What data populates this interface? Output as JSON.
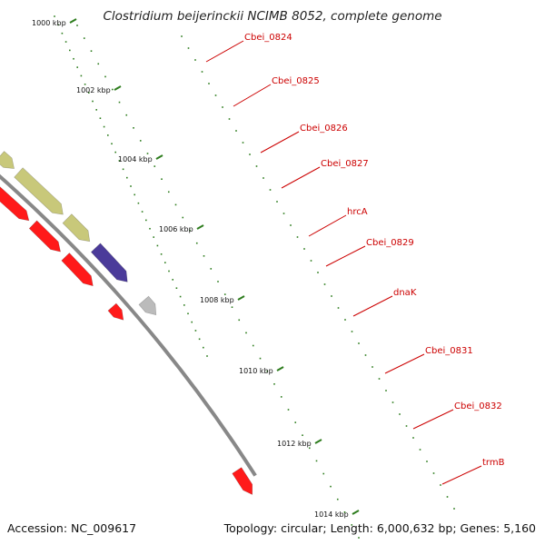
{
  "title": "Clostridium beijerinckii NCIMB 8052, complete genome",
  "footer": {
    "accession": "Accession: NC_009617",
    "topology": "Topology: circular; Length: 6,000,632 bp; Genes: 5,160"
  },
  "colors": {
    "backbone": "#888888",
    "tick": "#2e7d1e",
    "label": "#cc0000",
    "leader": "#cc0000"
  },
  "kbp_ticks": [
    "1000 kbp",
    "1002 kbp",
    "1004 kbp",
    "1006 kbp",
    "1008 kbp",
    "1010 kbp",
    "1012 kbp",
    "1014 kbp"
  ],
  "genes": [
    {
      "label": "Cbei_0824",
      "color": "#ff1a1a",
      "strand": "reverse"
    },
    {
      "label": "Cbei_0825",
      "color": "#6b8e23",
      "strand": "forward"
    },
    {
      "label": "Cbei_0826",
      "color": "#ff1a1a",
      "strand": "reverse"
    },
    {
      "label": "Cbei_0827",
      "color": "#0000ee",
      "strand": "forward"
    },
    {
      "label": "hrcA",
      "color": "#ff8c00",
      "strand": "forward"
    },
    {
      "label": "Cbei_0829",
      "color": "#c8c87a",
      "strand": "forward"
    },
    {
      "label": "dnaK",
      "color": "#c8c87a",
      "strand": "forward"
    },
    {
      "label": "Cbei_0831",
      "color": "#c8c87a",
      "strand": "forward"
    },
    {
      "label": "Cbei_0832",
      "color": "#4b3b9a",
      "strand": "forward"
    },
    {
      "label": "trmB",
      "color": "#bbbbbb",
      "strand": "forward"
    }
  ]
}
